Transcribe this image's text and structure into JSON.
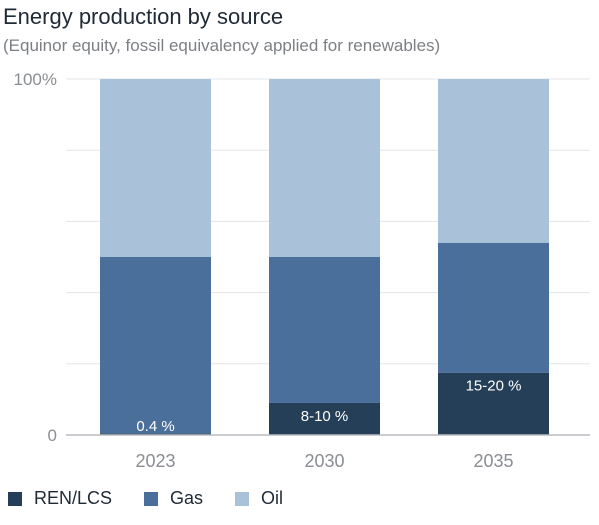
{
  "chart_data": {
    "type": "bar",
    "stacked": true,
    "normalized": true,
    "title": "Energy production by source",
    "subtitle": "(Equinor equity, fossil equivalency applied for renewables)",
    "categories": [
      "2023",
      "2030",
      "2035"
    ],
    "y_tick_labels": [
      "0",
      "100%"
    ],
    "ylim": [
      0,
      100
    ],
    "grid": true,
    "legend_position": "bottom-left",
    "series": [
      {
        "name": "REN/LCS",
        "color": "#243f57",
        "values": [
          0.4,
          9,
          17.5
        ],
        "labels": [
          "0.4 %",
          "8-10 %",
          "15-20 %"
        ]
      },
      {
        "name": "Gas",
        "color": "#4a6f9a",
        "values": [
          49.6,
          41,
          36.5
        ]
      },
      {
        "name": "Oil",
        "color": "#a9c2da",
        "values": [
          50,
          50,
          46
        ]
      }
    ]
  }
}
